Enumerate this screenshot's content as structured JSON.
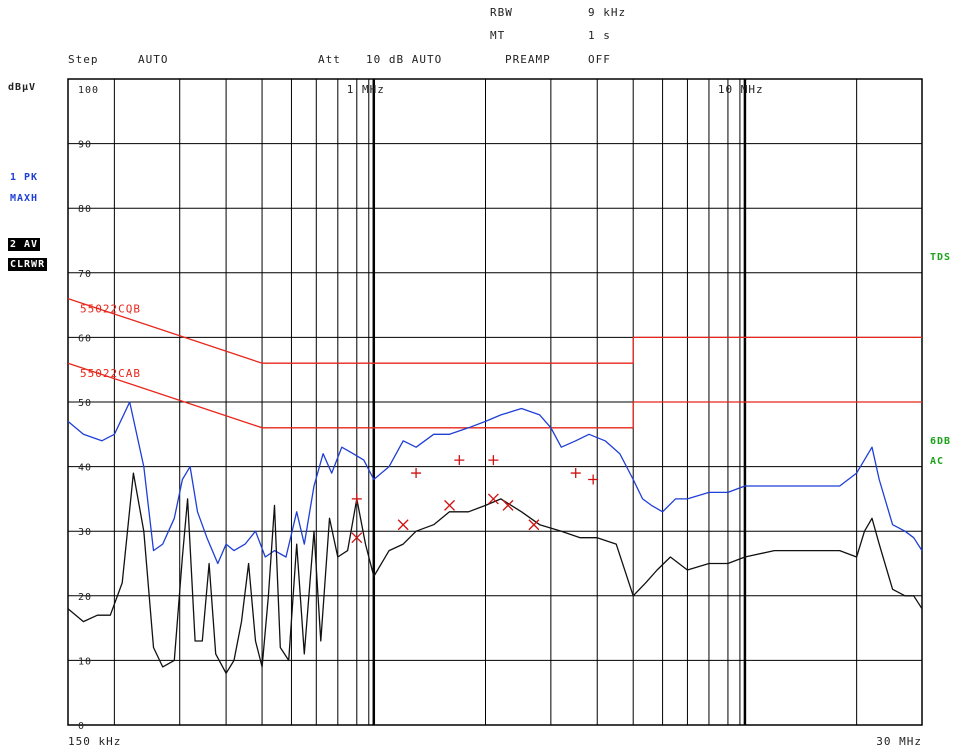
{
  "header": {
    "rbw_label": "RBW",
    "rbw_value": "9 kHz",
    "mt_label": "MT",
    "mt_value": "1 s",
    "step_label": "Step",
    "step_value": "AUTO",
    "att_label": "Att",
    "att_value": "10 dB AUTO",
    "preamp_label": "PREAMP",
    "preamp_value": "OFF"
  },
  "side": {
    "unit": "dBµV",
    "trace1_line1": "1 PK",
    "trace1_line2": "MAXH",
    "trace2_line1": "2 AV",
    "trace2_line2": "CLRWR",
    "tds": "TDS",
    "r6db": "6DB",
    "ac": "AC"
  },
  "colors": {
    "peak": "#1f3fd6",
    "average": "#111111",
    "limit": "#e8261c",
    "marker": "#d01010",
    "green": "#1aa31a"
  },
  "chart_data": {
    "type": "line",
    "x_scale": "log",
    "x_unit": "Hz",
    "xlim": [
      150000,
      30000000
    ],
    "ylim": [
      0,
      100
    ],
    "y_ticks": [
      0,
      10,
      20,
      30,
      40,
      50,
      60,
      70,
      80,
      90,
      100
    ],
    "y_tick_labels": [
      "0",
      "10",
      "20",
      "30",
      "40",
      "50",
      "60",
      "70",
      "80",
      "90",
      "100"
    ],
    "x_start_label": "150 kHz",
    "x_end_label": "30 MHz",
    "x_decade_labels": [
      {
        "f": 1000000,
        "text": "1 MHz"
      },
      {
        "f": 10000000,
        "text": "10 MHz"
      }
    ],
    "limits": [
      {
        "name": "55022CQB",
        "points": [
          [
            150000,
            66
          ],
          [
            500000,
            56
          ],
          [
            5000000,
            56
          ],
          [
            5000000,
            60
          ],
          [
            30000000,
            60
          ]
        ]
      },
      {
        "name": "55022CAB",
        "points": [
          [
            150000,
            56
          ],
          [
            500000,
            46
          ],
          [
            5000000,
            46
          ],
          [
            5000000,
            50
          ],
          [
            30000000,
            50
          ]
        ]
      }
    ],
    "series": [
      {
        "name": "1 PK MAXH",
        "points": [
          [
            150000,
            47
          ],
          [
            165000,
            45
          ],
          [
            185000,
            44
          ],
          [
            200000,
            45
          ],
          [
            220000,
            50
          ],
          [
            240000,
            40
          ],
          [
            255000,
            27
          ],
          [
            270000,
            28
          ],
          [
            290000,
            32
          ],
          [
            305000,
            38
          ],
          [
            320000,
            40
          ],
          [
            335000,
            33
          ],
          [
            355000,
            29
          ],
          [
            380000,
            25
          ],
          [
            400000,
            28
          ],
          [
            420000,
            27
          ],
          [
            450000,
            28
          ],
          [
            480000,
            30
          ],
          [
            510000,
            26
          ],
          [
            540000,
            27
          ],
          [
            580000,
            26
          ],
          [
            620000,
            33
          ],
          [
            650000,
            28
          ],
          [
            690000,
            37
          ],
          [
            730000,
            42
          ],
          [
            770000,
            39
          ],
          [
            820000,
            43
          ],
          [
            880000,
            42
          ],
          [
            940000,
            41
          ],
          [
            1000000,
            38
          ],
          [
            1100000,
            40
          ],
          [
            1200000,
            44
          ],
          [
            1300000,
            43
          ],
          [
            1450000,
            45
          ],
          [
            1600000,
            45
          ],
          [
            1800000,
            46
          ],
          [
            2000000,
            47
          ],
          [
            2200000,
            48
          ],
          [
            2500000,
            49
          ],
          [
            2800000,
            48
          ],
          [
            3000000,
            46
          ],
          [
            3200000,
            43
          ],
          [
            3500000,
            44
          ],
          [
            3800000,
            45
          ],
          [
            4200000,
            44
          ],
          [
            4600000,
            42
          ],
          [
            5000000,
            38
          ],
          [
            5300000,
            35
          ],
          [
            5600000,
            34
          ],
          [
            6000000,
            33
          ],
          [
            6500000,
            35
          ],
          [
            7000000,
            35
          ],
          [
            8000000,
            36
          ],
          [
            9000000,
            36
          ],
          [
            10000000,
            37
          ],
          [
            12000000,
            37
          ],
          [
            14000000,
            37
          ],
          [
            16000000,
            37
          ],
          [
            18000000,
            37
          ],
          [
            20000000,
            39
          ],
          [
            22000000,
            43
          ],
          [
            23000000,
            38
          ],
          [
            25000000,
            31
          ],
          [
            27000000,
            30
          ],
          [
            28500000,
            29
          ],
          [
            30000000,
            27
          ]
        ]
      },
      {
        "name": "2 AV CLRWR",
        "points": [
          [
            150000,
            18
          ],
          [
            165000,
            16
          ],
          [
            180000,
            17
          ],
          [
            195000,
            17
          ],
          [
            210000,
            22
          ],
          [
            225000,
            39
          ],
          [
            240000,
            30
          ],
          [
            255000,
            12
          ],
          [
            270000,
            9
          ],
          [
            290000,
            10
          ],
          [
            305000,
            26
          ],
          [
            315000,
            35
          ],
          [
            330000,
            13
          ],
          [
            345000,
            13
          ],
          [
            360000,
            25
          ],
          [
            375000,
            11
          ],
          [
            400000,
            8
          ],
          [
            420000,
            10
          ],
          [
            440000,
            16
          ],
          [
            460000,
            25
          ],
          [
            480000,
            13
          ],
          [
            500000,
            9
          ],
          [
            520000,
            20
          ],
          [
            540000,
            34
          ],
          [
            560000,
            12
          ],
          [
            590000,
            10
          ],
          [
            620000,
            28
          ],
          [
            650000,
            11
          ],
          [
            690000,
            30
          ],
          [
            720000,
            13
          ],
          [
            760000,
            32
          ],
          [
            800000,
            26
          ],
          [
            850000,
            27
          ],
          [
            900000,
            35
          ],
          [
            950000,
            28
          ],
          [
            1000000,
            23
          ],
          [
            1100000,
            27
          ],
          [
            1200000,
            28
          ],
          [
            1300000,
            30
          ],
          [
            1450000,
            31
          ],
          [
            1600000,
            33
          ],
          [
            1800000,
            33
          ],
          [
            2000000,
            34
          ],
          [
            2200000,
            35
          ],
          [
            2500000,
            33
          ],
          [
            2800000,
            31
          ],
          [
            3200000,
            30
          ],
          [
            3600000,
            29
          ],
          [
            4000000,
            29
          ],
          [
            4500000,
            28
          ],
          [
            5000000,
            20
          ],
          [
            5400000,
            22
          ],
          [
            5800000,
            24
          ],
          [
            6300000,
            26
          ],
          [
            7000000,
            24
          ],
          [
            8000000,
            25
          ],
          [
            9000000,
            25
          ],
          [
            10000000,
            26
          ],
          [
            12000000,
            27
          ],
          [
            14000000,
            27
          ],
          [
            16000000,
            27
          ],
          [
            18000000,
            27
          ],
          [
            20000000,
            26
          ],
          [
            21000000,
            30
          ],
          [
            22000000,
            32
          ],
          [
            23000000,
            28
          ],
          [
            25000000,
            21
          ],
          [
            27000000,
            20
          ],
          [
            28500000,
            20
          ],
          [
            30000000,
            18
          ]
        ]
      }
    ],
    "markers": [
      {
        "type": "plus",
        "points": [
          [
            900000,
            35
          ],
          [
            1300000,
            39
          ],
          [
            1700000,
            41
          ],
          [
            2100000,
            41
          ],
          [
            3500000,
            39
          ],
          [
            3900000,
            38
          ]
        ]
      },
      {
        "type": "x",
        "points": [
          [
            900000,
            29
          ],
          [
            1200000,
            31
          ],
          [
            1600000,
            34
          ],
          [
            2100000,
            35
          ],
          [
            2300000,
            34
          ],
          [
            2700000,
            31
          ]
        ]
      }
    ]
  }
}
